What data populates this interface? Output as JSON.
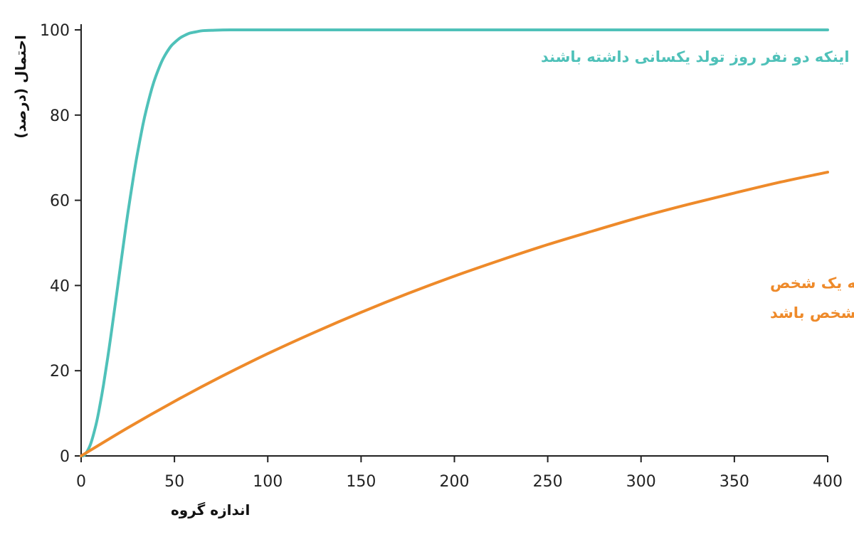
{
  "chart_data": {
    "type": "line",
    "xlabel": "اندازه گروه",
    "ylabel": "احتمال (درصد)",
    "xlim": [
      0,
      400
    ],
    "ylim": [
      0,
      100
    ],
    "x_ticks": [
      0,
      50,
      100,
      150,
      200,
      250,
      300,
      350,
      400
    ],
    "y_ticks": [
      0,
      20,
      40,
      60,
      80,
      100
    ],
    "grid": false,
    "series": [
      {
        "name": "احتمال اینکه دو نفر روز تولد یکسانی داشته باشند",
        "color": "#4fc1b9",
        "x": [
          0,
          2,
          5,
          8,
          10,
          12,
          15,
          18,
          20,
          23,
          25,
          28,
          30,
          33,
          35,
          38,
          40,
          43,
          45,
          48,
          50,
          53,
          55,
          58,
          60,
          65,
          70,
          80,
          100,
          150,
          200,
          250,
          300,
          350,
          400
        ],
        "y": [
          0,
          0.3,
          2.7,
          7.4,
          11.7,
          16.7,
          25.3,
          34.7,
          41.1,
          50.7,
          56.9,
          65.4,
          70.6,
          77.5,
          81.4,
          86.4,
          89.1,
          92.4,
          94.1,
          96.1,
          97.0,
          98.1,
          98.6,
          99.2,
          99.4,
          99.8,
          99.9,
          100,
          100,
          100,
          100,
          100,
          100,
          100,
          100
        ],
        "label_lines": [
          "احتمال اینکه دو نفر روز تولد یکسانی داشته باشند"
        ]
      },
      {
        "name": "این احتمال که یک شخص دارای روز تولد در تاریخی مشخص باشد",
        "color": "#ee8a2a",
        "x": [
          0,
          25,
          50,
          75,
          100,
          125,
          150,
          175,
          200,
          225,
          250,
          275,
          300,
          325,
          350,
          375,
          400
        ],
        "y": [
          0,
          6.6,
          12.8,
          18.6,
          24.0,
          29.0,
          33.7,
          38.1,
          42.2,
          46.0,
          49.6,
          52.9,
          56.1,
          59.0,
          61.7,
          64.3,
          66.6
        ],
        "label_lines": [
          "این احتمال که یک شخص",
          "دارای روز تولد در تاریخی مشخص باشد"
        ]
      }
    ]
  }
}
